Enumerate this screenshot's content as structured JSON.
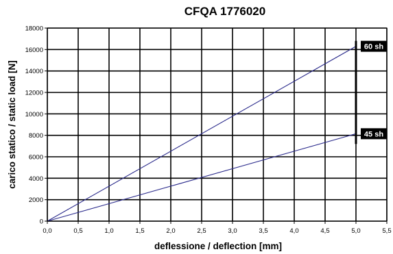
{
  "chart_data": {
    "type": "line",
    "title": "CFQA 1776020",
    "xlabel": "deflessione / deflection [mm]",
    "ylabel": "carico statico / static load [N]",
    "xlim": [
      0,
      5.5
    ],
    "ylim": [
      0,
      18000
    ],
    "x_ticks": [
      0,
      0.5,
      1,
      1.5,
      2,
      2.5,
      3,
      3.5,
      4,
      4.5,
      5,
      5.5
    ],
    "x_tick_labels": [
      "0,0",
      "0,5",
      "1,0",
      "1,5",
      "2,0",
      "2,5",
      "3,0",
      "3,5",
      "4,0",
      "4,5",
      "5,0",
      "5,5"
    ],
    "y_ticks": [
      0,
      2000,
      4000,
      6000,
      8000,
      10000,
      12000,
      14000,
      16000,
      18000
    ],
    "y_tick_labels": [
      "0",
      "2000",
      "4000",
      "6000",
      "8000",
      "10000",
      "12000",
      "14000",
      "16000",
      "18000"
    ],
    "grid": true,
    "line_color": "#2b2b8c",
    "marker_line": {
      "x": 5.0,
      "y_range": [
        7200,
        16800
      ],
      "color": "#000000"
    },
    "series": [
      {
        "name": "60 sh",
        "x": [
          0,
          5.0
        ],
        "y": [
          0,
          16300
        ]
      },
      {
        "name": "45 sh",
        "x": [
          0,
          5.0
        ],
        "y": [
          0,
          8150
        ]
      }
    ]
  }
}
